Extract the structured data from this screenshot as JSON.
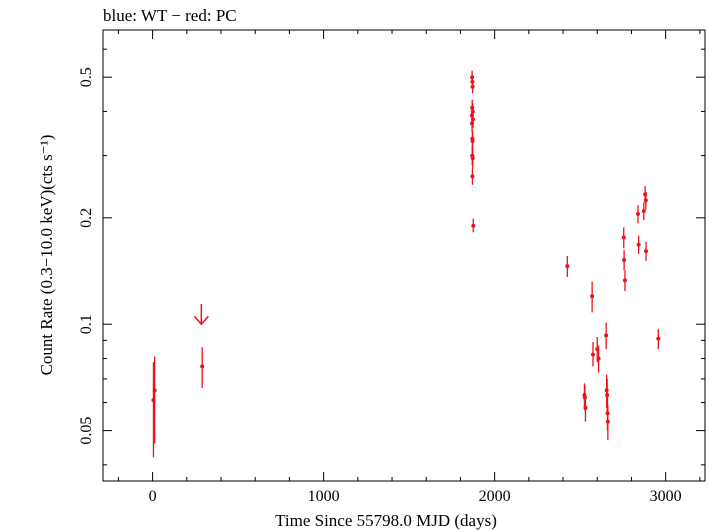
{
  "chart_data": {
    "type": "scatter",
    "title": "blue: WT − red: PC",
    "xlabel": "Time Since 55798.0 MJD (days)",
    "ylabel": "Count Rate (0.3−10.0 keV)(cts s⁻¹)",
    "xlim": [
      -290,
      3230
    ],
    "ylim": [
      0.036,
      0.68
    ],
    "yscale": "log",
    "x_ticks": [
      0,
      1000,
      2000,
      3000
    ],
    "x_tick_labels": [
      "0",
      "1000",
      "2000",
      "3000"
    ],
    "y_ticks": [
      0.05,
      0.1,
      0.2,
      0.5
    ],
    "y_tick_labels": [
      "0.05",
      "0.1",
      "0.2",
      "0.5"
    ],
    "grid": false,
    "series": [
      {
        "color": "#e8141c",
        "points": [
          {
            "x": 5,
            "y": 0.061,
            "ylo": 0.042,
            "yhi": 0.078
          },
          {
            "x": 12,
            "y": 0.065,
            "ylo": 0.046,
            "yhi": 0.081
          },
          {
            "x": 1868,
            "y": 0.5,
            "ylo": 0.48,
            "yhi": 0.522
          },
          {
            "x": 1870,
            "y": 0.485,
            "ylo": 0.465,
            "yhi": 0.507
          },
          {
            "x": 1871,
            "y": 0.47,
            "ylo": 0.45,
            "yhi": 0.491
          },
          {
            "x": 1869,
            "y": 0.41,
            "ylo": 0.388,
            "yhi": 0.432
          },
          {
            "x": 1872,
            "y": 0.4,
            "ylo": 0.378,
            "yhi": 0.422
          },
          {
            "x": 1867,
            "y": 0.39,
            "ylo": 0.369,
            "yhi": 0.411
          },
          {
            "x": 1873,
            "y": 0.38,
            "ylo": 0.359,
            "yhi": 0.401
          },
          {
            "x": 1868,
            "y": 0.37,
            "ylo": 0.35,
            "yhi": 0.391
          },
          {
            "x": 1870,
            "y": 0.335,
            "ylo": 0.316,
            "yhi": 0.355
          },
          {
            "x": 1871,
            "y": 0.33,
            "ylo": 0.311,
            "yhi": 0.35
          },
          {
            "x": 1869,
            "y": 0.3,
            "ylo": 0.282,
            "yhi": 0.319
          },
          {
            "x": 1872,
            "y": 0.295,
            "ylo": 0.277,
            "yhi": 0.314
          },
          {
            "x": 1870,
            "y": 0.262,
            "ylo": 0.248,
            "yhi": 0.277
          },
          {
            "x": 1875,
            "y": 0.19,
            "ylo": 0.182,
            "yhi": 0.199
          },
          {
            "x": 2425,
            "y": 0.146,
            "ylo": 0.136,
            "yhi": 0.156
          },
          {
            "x": 2525,
            "y": 0.063,
            "ylo": 0.058,
            "yhi": 0.068
          },
          {
            "x": 2528,
            "y": 0.062,
            "ylo": 0.057,
            "yhi": 0.067
          },
          {
            "x": 2531,
            "y": 0.058,
            "ylo": 0.053,
            "yhi": 0.063
          },
          {
            "x": 2570,
            "y": 0.12,
            "ylo": 0.108,
            "yhi": 0.132
          },
          {
            "x": 2575,
            "y": 0.082,
            "ylo": 0.076,
            "yhi": 0.089
          },
          {
            "x": 2600,
            "y": 0.085,
            "ylo": 0.078,
            "yhi": 0.092
          },
          {
            "x": 2608,
            "y": 0.08,
            "ylo": 0.073,
            "yhi": 0.087
          },
          {
            "x": 2652,
            "y": 0.093,
            "ylo": 0.085,
            "yhi": 0.101
          },
          {
            "x": 2655,
            "y": 0.065,
            "ylo": 0.058,
            "yhi": 0.072
          },
          {
            "x": 2658,
            "y": 0.063,
            "ylo": 0.056,
            "yhi": 0.07
          },
          {
            "x": 2660,
            "y": 0.056,
            "ylo": 0.05,
            "yhi": 0.062
          },
          {
            "x": 2662,
            "y": 0.053,
            "ylo": 0.047,
            "yhi": 0.059
          },
          {
            "x": 2755,
            "y": 0.176,
            "ylo": 0.164,
            "yhi": 0.188
          },
          {
            "x": 2757,
            "y": 0.152,
            "ylo": 0.142,
            "yhi": 0.162
          },
          {
            "x": 2762,
            "y": 0.133,
            "ylo": 0.124,
            "yhi": 0.142
          },
          {
            "x": 2838,
            "y": 0.205,
            "ylo": 0.193,
            "yhi": 0.217
          },
          {
            "x": 2842,
            "y": 0.168,
            "ylo": 0.158,
            "yhi": 0.178
          },
          {
            "x": 2872,
            "y": 0.209,
            "ylo": 0.197,
            "yhi": 0.221
          },
          {
            "x": 2880,
            "y": 0.233,
            "ylo": 0.22,
            "yhi": 0.246
          },
          {
            "x": 2884,
            "y": 0.224,
            "ylo": 0.211,
            "yhi": 0.237
          },
          {
            "x": 2885,
            "y": 0.161,
            "ylo": 0.151,
            "yhi": 0.171
          },
          {
            "x": 2957,
            "y": 0.091,
            "ylo": 0.085,
            "yhi": 0.097
          }
        ],
        "upper_limits": [
          {
            "x": 290,
            "y": 0.076,
            "ylo": 0.066,
            "yhi": 0.086
          }
        ]
      }
    ],
    "upper_limit_arrows": [
      {
        "x": 285,
        "y": 0.1,
        "top": 0.114
      }
    ]
  }
}
